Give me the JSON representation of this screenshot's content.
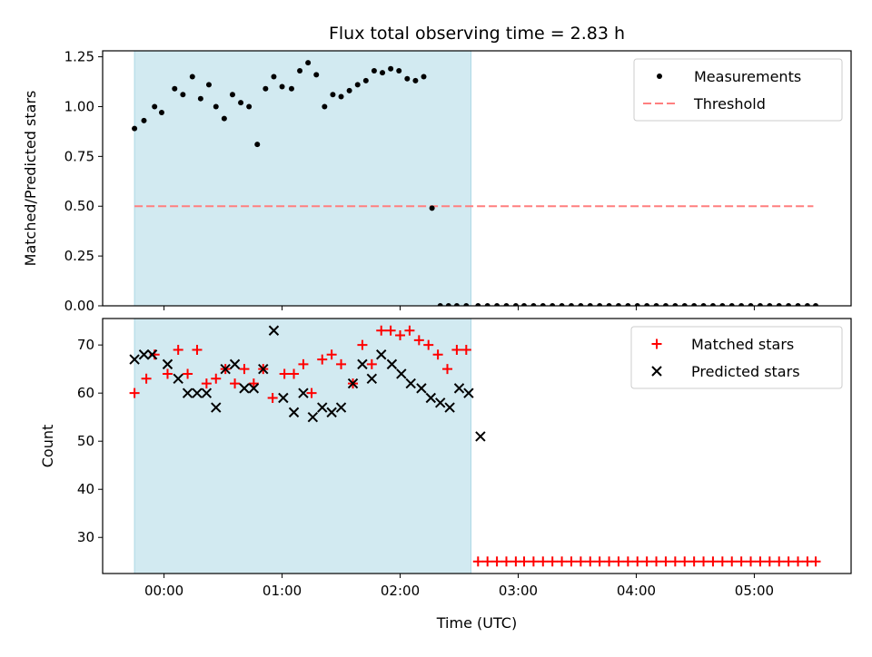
{
  "chart_data": [
    {
      "type": "scatter",
      "title": "Flux total observing time = 2.83 h",
      "xlabel": "",
      "ylabel": "Matched/Predicted stars",
      "xlim_hours": [
        -0.52,
        5.82
      ],
      "ylim": [
        0,
        1.28
      ],
      "yticks": [
        0.0,
        0.25,
        0.5,
        0.75,
        1.0,
        1.25
      ],
      "ytick_labels": [
        "0.00",
        "0.25",
        "0.50",
        "0.75",
        "1.00",
        "1.25"
      ],
      "xticks_hours": [
        0,
        1,
        2,
        3,
        4,
        5
      ],
      "shaded_span_hours": [
        -0.25,
        2.6
      ],
      "shaded_color": "#add8e6",
      "threshold": {
        "label": "Threshold",
        "y": 0.5,
        "x_range": [
          -0.25,
          5.5
        ],
        "color": "#ff7f7f"
      },
      "legend": {
        "position": "top-right",
        "entries": [
          "Measurements",
          "Threshold"
        ]
      },
      "series": [
        {
          "name": "Measurements",
          "marker": "dot",
          "color": "#000000",
          "x": [
            -0.25,
            -0.17,
            -0.08,
            -0.02,
            0.09,
            0.16,
            0.24,
            0.31,
            0.38,
            0.44,
            0.51,
            0.58,
            0.65,
            0.72,
            0.79,
            0.86,
            0.93,
            1.0,
            1.08,
            1.15,
            1.22,
            1.29,
            1.36,
            1.43,
            1.5,
            1.57,
            1.64,
            1.71,
            1.78,
            1.85,
            1.92,
            1.99,
            2.06,
            2.13,
            2.2,
            2.27,
            2.34,
            2.41,
            2.48,
            2.56,
            2.66,
            2.74,
            2.82,
            2.9,
            2.98,
            3.05,
            3.13,
            3.21,
            3.29,
            3.37,
            3.45,
            3.53,
            3.61,
            3.69,
            3.77,
            3.85,
            3.93,
            4.01,
            4.09,
            4.17,
            4.25,
            4.33,
            4.41,
            4.49,
            4.57,
            4.65,
            4.73,
            4.81,
            4.89,
            4.97,
            5.05,
            5.13,
            5.21,
            5.29,
            5.37,
            5.45,
            5.52
          ],
          "y": [
            0.89,
            0.93,
            1.0,
            0.97,
            1.09,
            1.06,
            1.15,
            1.04,
            1.11,
            1.0,
            0.94,
            1.06,
            1.02,
            1.0,
            0.81,
            1.09,
            1.15,
            1.1,
            1.09,
            1.18,
            1.22,
            1.16,
            1.0,
            1.06,
            1.05,
            1.08,
            1.11,
            1.13,
            1.18,
            1.17,
            1.19,
            1.18,
            1.14,
            1.13,
            1.15,
            0.49,
            0,
            0,
            0,
            0,
            0,
            0,
            0,
            0,
            0,
            0,
            0,
            0,
            0,
            0,
            0,
            0,
            0,
            0,
            0,
            0,
            0,
            0,
            0,
            0,
            0,
            0,
            0,
            0,
            0,
            0,
            0,
            0,
            0,
            0,
            0,
            0,
            0,
            0,
            0,
            0,
            0
          ]
        }
      ]
    },
    {
      "type": "scatter",
      "title": "",
      "xlabel": "Time (UTC)",
      "ylabel": "Count",
      "xlim_hours": [
        -0.52,
        5.82
      ],
      "ylim": [
        22.5,
        75.5
      ],
      "yticks": [
        30,
        40,
        50,
        60,
        70
      ],
      "ytick_labels": [
        "30",
        "40",
        "50",
        "60",
        "70"
      ],
      "xticks_hours": [
        0,
        1,
        2,
        3,
        4,
        5
      ],
      "xtick_labels": [
        "00:00",
        "01:00",
        "02:00",
        "03:00",
        "04:00",
        "05:00"
      ],
      "shaded_span_hours": [
        -0.25,
        2.6
      ],
      "shaded_color": "#add8e6",
      "legend": {
        "position": "top-right",
        "entries": [
          "Matched stars",
          "Predicted stars"
        ]
      },
      "series": [
        {
          "name": "Matched stars",
          "marker": "plus",
          "color": "#ff0000",
          "x": [
            -0.25,
            -0.15,
            -0.08,
            0.03,
            0.12,
            0.2,
            0.28,
            0.36,
            0.44,
            0.52,
            0.6,
            0.68,
            0.76,
            0.84,
            0.92,
            1.02,
            1.1,
            1.18,
            1.25,
            1.34,
            1.42,
            1.5,
            1.6,
            1.68,
            1.76,
            1.84,
            1.92,
            2.0,
            2.08,
            2.16,
            2.24,
            2.32,
            2.4,
            2.48,
            2.56,
            2.66,
            2.74,
            2.82,
            2.9,
            2.98,
            3.05,
            3.13,
            3.21,
            3.29,
            3.37,
            3.45,
            3.53,
            3.61,
            3.69,
            3.77,
            3.85,
            3.93,
            4.01,
            4.09,
            4.17,
            4.25,
            4.33,
            4.41,
            4.49,
            4.57,
            4.65,
            4.73,
            4.81,
            4.89,
            4.97,
            5.05,
            5.13,
            5.21,
            5.29,
            5.37,
            5.45,
            5.52
          ],
          "y": [
            60,
            63,
            68,
            64,
            69,
            64,
            69,
            62,
            63,
            65,
            62,
            65,
            62,
            65,
            59,
            64,
            64,
            66,
            60,
            67,
            68,
            66,
            62,
            70,
            66,
            73,
            73,
            72,
            73,
            71,
            70,
            68,
            65,
            69,
            69,
            25,
            25,
            25,
            25,
            25,
            25,
            25,
            25,
            25,
            25,
            25,
            25,
            25,
            25,
            25,
            25,
            25,
            25,
            25,
            25,
            25,
            25,
            25,
            25,
            25,
            25,
            25,
            25,
            25,
            25,
            25,
            25,
            25,
            25,
            25,
            25,
            25
          ]
        },
        {
          "name": "Predicted stars",
          "marker": "x",
          "color": "#000000",
          "x": [
            -0.25,
            -0.17,
            -0.1,
            0.03,
            0.12,
            0.2,
            0.28,
            0.36,
            0.44,
            0.52,
            0.6,
            0.68,
            0.76,
            0.84,
            0.93,
            1.01,
            1.1,
            1.18,
            1.26,
            1.34,
            1.42,
            1.5,
            1.6,
            1.68,
            1.76,
            1.84,
            1.93,
            2.01,
            2.09,
            2.18,
            2.26,
            2.34,
            2.42,
            2.5,
            2.58,
            2.68
          ],
          "y": [
            67,
            68,
            68,
            66,
            63,
            60,
            60,
            60,
            57,
            65,
            66,
            61,
            61,
            65,
            73,
            59,
            56,
            60,
            55,
            57,
            56,
            57,
            62,
            66,
            63,
            68,
            66,
            64,
            62,
            61,
            59,
            58,
            57,
            61,
            60,
            51
          ]
        }
      ]
    }
  ]
}
